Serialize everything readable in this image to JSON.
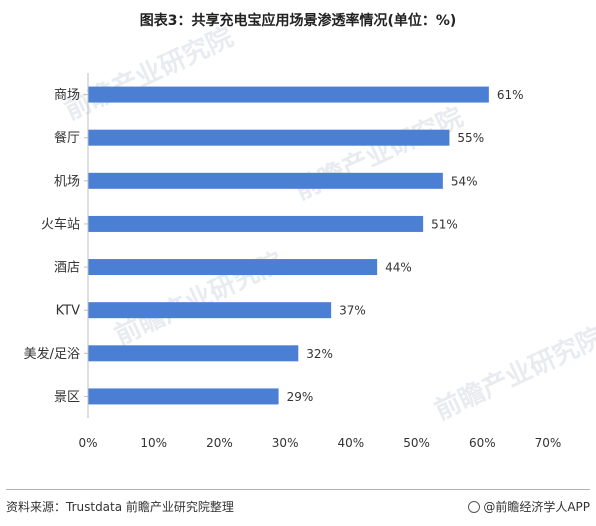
{
  "title": "图表3：共享充电宝应用场景渗透率情况(单位：%)",
  "source": "资料来源：Trustdata 前瞻产业研究院整理",
  "brand": "@前瞻经济学人APP",
  "watermark": "前瞻产业研究院",
  "colors": {
    "bar": "#4a7fd3",
    "axis": "#bfbfbf"
  },
  "chart_data": {
    "type": "bar",
    "orientation": "horizontal",
    "categories": [
      "商场",
      "餐厅",
      "机场",
      "火车站",
      "酒店",
      "KTV",
      "美发/足浴",
      "景区"
    ],
    "values": [
      61,
      55,
      54,
      51,
      44,
      37,
      32,
      29
    ],
    "value_labels": [
      "61%",
      "55%",
      "54%",
      "51%",
      "44%",
      "37%",
      "32%",
      "29%"
    ],
    "x_ticks": [
      "0%",
      "10%",
      "20%",
      "30%",
      "40%",
      "50%",
      "60%",
      "70%"
    ],
    "xlim": [
      0,
      70
    ],
    "grid": false,
    "title": "图表3：共享充电宝应用场景渗透率情况(单位：%)"
  }
}
